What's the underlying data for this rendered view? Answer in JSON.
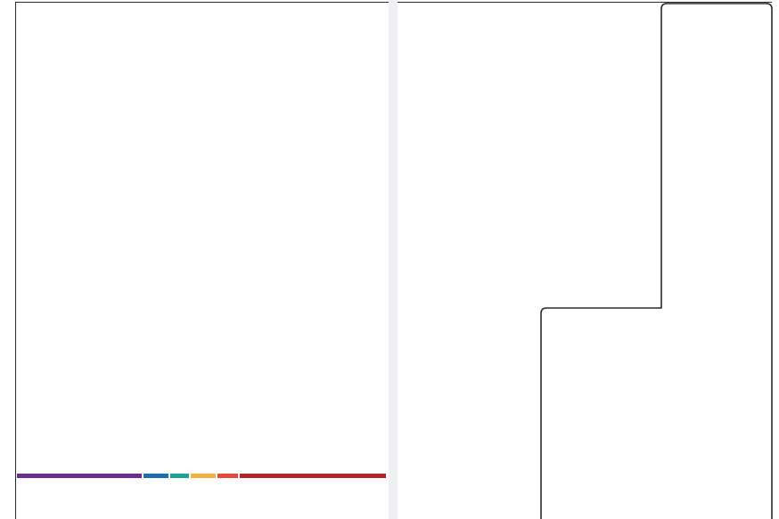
{
  "colors": {
    "frame_stroke": "#2b2b2b",
    "divider": "#eef0f3",
    "background": "#ffffff"
  },
  "color_strip": {
    "segments": [
      {
        "color": "#6a2d91",
        "share": 0.344
      },
      {
        "color": "#1c6fae",
        "share": 0.068
      },
      {
        "color": "#1fa191",
        "share": 0.051
      },
      {
        "color": "#f4b13e",
        "share": 0.068
      },
      {
        "color": "#e34a3a",
        "share": 0.056
      },
      {
        "color": "#b5242e",
        "share": 0.404
      }
    ]
  },
  "right_outline": {
    "shape": "stepped-outline"
  }
}
